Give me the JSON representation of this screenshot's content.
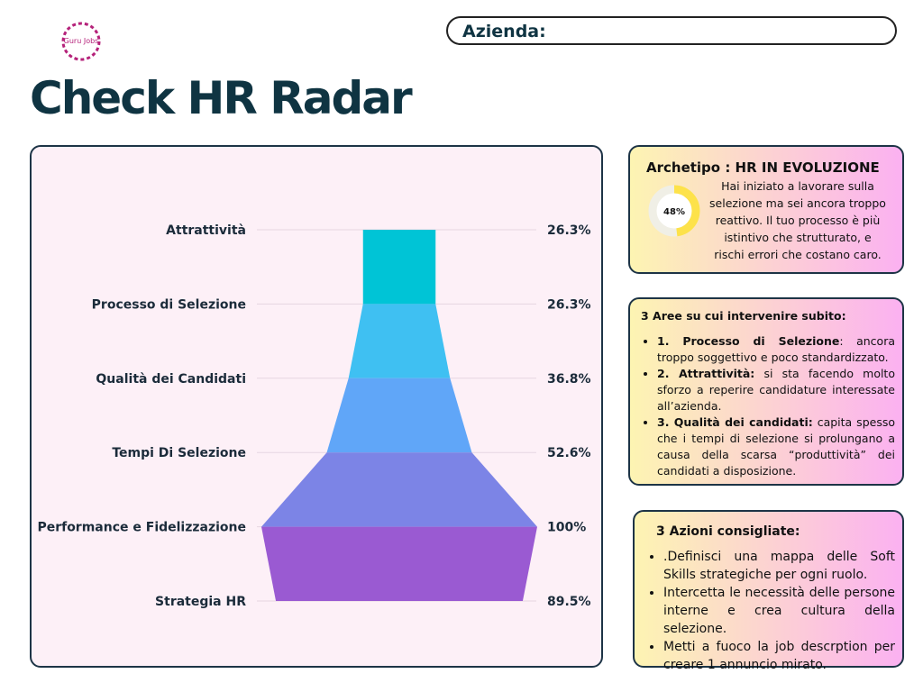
{
  "logo": "Guru Jobs",
  "company_label": "Azienda:",
  "title": "Check HR Radar",
  "chart_data": {
    "type": "funnel",
    "categories": [
      "Attrattività",
      "Processo di Selezione",
      "Qualità dei Candidati",
      "Tempi Di Selezione",
      "Performance e Fidelizzazione",
      "Strategia HR"
    ],
    "values": [
      26.3,
      26.3,
      36.8,
      52.6,
      100,
      89.5
    ],
    "value_labels": [
      "26.3%",
      "26.3%",
      "36.8%",
      "52.6%",
      "100%",
      "89.5%"
    ],
    "colors": [
      "#00c4d6",
      "#3fc0f2",
      "#60a6f8",
      "#7c84e6",
      "#9a5ad2"
    ]
  },
  "archetype": {
    "title": "Archetipo : HR IN EVOLUZIONE",
    "value": 48,
    "value_label": "48%",
    "text": "Hai iniziato a lavorare sulla selezione ma sei ancora troppo reattivo. Il tuo processo è più istintivo che strutturato, e rischi errori che costano caro."
  },
  "areas": {
    "title": "3 Aree su cui intervenire subito:",
    "items": [
      {
        "bold": "1. Processo di Selezione",
        "text": ": ancora troppo soggettivo e poco standardizzato."
      },
      {
        "bold": "2. Attrattività:",
        "text": " si sta facendo molto sforzo a reperire candidature interessate all’azienda."
      },
      {
        "bold": "3. Qualità dei candidati:",
        "text": " capita spesso che i tempi di selezione si prolungano a causa della scarsa “produttività” dei candidati a disposizione."
      }
    ]
  },
  "actions": {
    "title": "3 Azioni consigliate:",
    "items": [
      ".Definisci una mappa delle Soft Skills strategiche per ogni ruolo.",
      "Intercetta le necessità delle persone interne e crea cultura della selezione.",
      "Metti a fuoco la job descrption per creare 1 annuncio mirato."
    ]
  }
}
